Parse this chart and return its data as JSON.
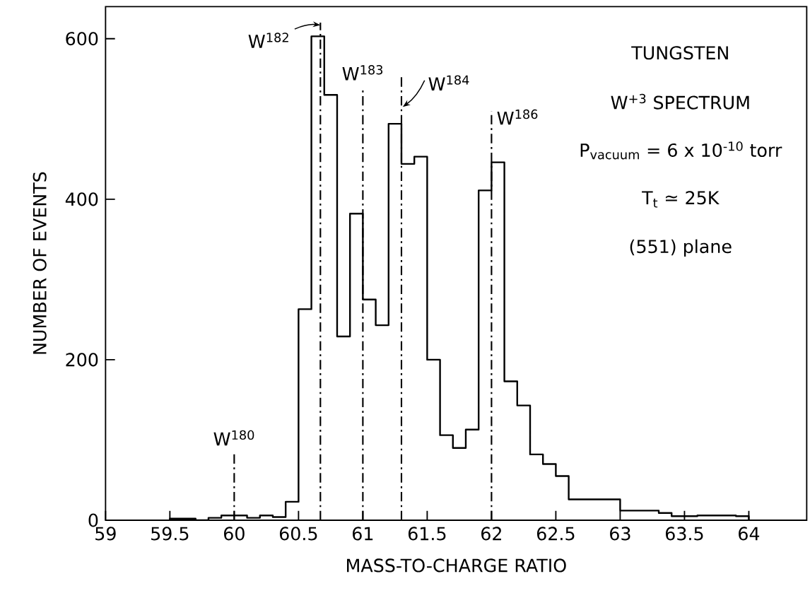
{
  "chart_data": {
    "type": "histogram",
    "xlabel": "MASS-TO-CHARGE RATIO",
    "ylabel": "NUMBER OF EVENTS",
    "bins": [
      59.5,
      59.6,
      59.7,
      59.8,
      59.9,
      60.0,
      60.1,
      60.2,
      60.3,
      60.4,
      60.5,
      60.6,
      60.7,
      60.8,
      60.9,
      61.0,
      61.1,
      61.2,
      61.3,
      61.4,
      61.5,
      61.6,
      61.7,
      61.8,
      61.9,
      62.0,
      62.1,
      62.2,
      62.3,
      62.4,
      62.5,
      62.6,
      62.7,
      62.8,
      62.9,
      63.0,
      63.1,
      63.2,
      63.3,
      63.4,
      63.5,
      63.6,
      63.7,
      63.8,
      63.9,
      64.0
    ],
    "values": [
      2,
      2,
      0,
      3,
      6,
      6,
      3,
      6,
      4,
      23,
      263,
      603,
      530,
      229,
      382,
      275,
      243,
      494,
      444,
      453,
      200,
      106,
      90,
      113,
      411,
      446,
      173,
      143,
      82,
      70,
      55,
      26,
      26,
      26,
      26,
      12,
      12,
      12,
      9,
      5,
      5,
      6,
      6,
      6,
      5
    ],
    "color": "#000000",
    "xlim": [
      59,
      64.45
    ],
    "ylim": [
      0,
      640
    ],
    "xticks": [
      59,
      59.5,
      60,
      60.5,
      61,
      61.5,
      62,
      62.5,
      63,
      63.5,
      64
    ],
    "yticks": [
      0,
      200,
      400,
      600
    ],
    "ref_lines": [
      {
        "axis": "x",
        "value": 60.0,
        "label": "W$^{180}$",
        "line_style": "dashed"
      },
      {
        "axis": "x",
        "value": 60.67,
        "label": "W$^{182}$",
        "line_style": "dashed"
      },
      {
        "axis": "x",
        "value": 61.0,
        "label": "W$^{183}$",
        "line_style": "dashed"
      },
      {
        "axis": "x",
        "value": 61.3,
        "label": "W$^{184}$",
        "line_style": "dashed"
      },
      {
        "axis": "x",
        "value": 62.0,
        "label": "W$^{186}$",
        "line_style": "dashed"
      }
    ],
    "annotations": [
      "TUNGSTEN",
      "W$^{+3}$ SPECTRUM",
      "P$_{vacuum}$ = 6 x 10$^{-10}$ torr",
      "T$_{t}$ ≃ 25K",
      "(551) plane"
    ],
    "line_style": "solid"
  }
}
